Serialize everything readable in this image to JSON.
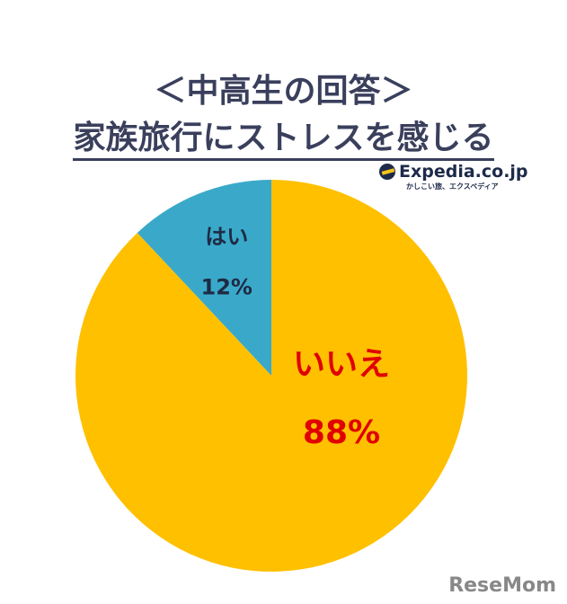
{
  "chart_data": {
    "type": "pie",
    "title": "＜中高生の回答＞",
    "subtitle": "家族旅行にストレスを感じる",
    "slices": [
      {
        "label": "はい",
        "value": 12,
        "value_label": "12%",
        "color": "#3AA9C9",
        "label_color": "#1f2a44"
      },
      {
        "label": "いいえ",
        "value": 88,
        "value_label": "88%",
        "color": "#FFC000",
        "label_color": "#E00000"
      }
    ],
    "start": "12 o'clock",
    "direction": "counterclockwise"
  },
  "logo": {
    "main": "Expedia.co.jp",
    "sub": "かしこい旅、エクスペディア"
  },
  "watermark": "ReseMom"
}
